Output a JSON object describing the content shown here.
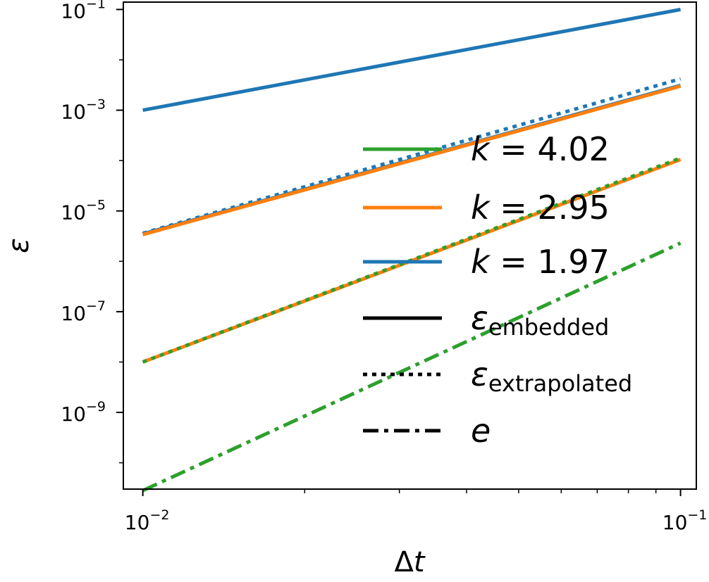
{
  "chart_data": {
    "type": "line",
    "title": "",
    "xlabel": "Δt",
    "ylabel": "ε",
    "xscale": "log",
    "yscale": "log",
    "xlim": [
      0.0092,
      0.107
    ],
    "ylim": [
      3e-11,
      0.14
    ],
    "x_ticks": [
      {
        "value": 0.01,
        "base": "10",
        "exp": "−2"
      },
      {
        "value": 0.1,
        "base": "10",
        "exp": "−1"
      }
    ],
    "y_ticks": [
      {
        "value": 0.1,
        "base": "10",
        "exp": "−1"
      },
      {
        "value": 0.001,
        "base": "10",
        "exp": "−3"
      },
      {
        "value": 1e-05,
        "base": "10",
        "exp": "−5"
      },
      {
        "value": 1e-07,
        "base": "10",
        "exp": "−7"
      },
      {
        "value": 1e-09,
        "base": "10",
        "exp": "−9"
      }
    ],
    "grid": false,
    "legend_position": "center-right",
    "series": [
      {
        "order_label": "k = 1.97",
        "color": "#1f77b4",
        "kind": "embedded",
        "x": [
          0.01,
          0.1
        ],
        "y": [
          0.001,
          0.1
        ]
      },
      {
        "order_label": "k = 1.97",
        "color": "#1f77b4",
        "kind": "embedded",
        "x": [
          0.01,
          0.1
        ],
        "y": [
          3.5e-06,
          0.0031
        ]
      },
      {
        "order_label": "k = 1.97",
        "color": "#1f77b4",
        "kind": "extrapolated",
        "x": [
          0.01,
          0.1
        ],
        "y": [
          3.6e-06,
          0.0042
        ]
      },
      {
        "order_label": "k = 2.95",
        "color": "#ff7f0e",
        "kind": "embedded",
        "x": [
          0.01,
          0.1
        ],
        "y": [
          3.4e-06,
          0.003
        ]
      },
      {
        "order_label": "k = 2.95",
        "color": "#ff7f0e",
        "kind": "embedded",
        "x": [
          0.01,
          0.1
        ],
        "y": [
          1e-08,
          0.000105
        ]
      },
      {
        "order_label": "k = 4.02",
        "color": "#2ca02c",
        "kind": "extrapolated",
        "x": [
          0.01,
          0.1
        ],
        "y": [
          1e-08,
          0.000112
        ]
      },
      {
        "order_label": "k = 4.02",
        "color": "#2ca02c",
        "kind": "e",
        "x": [
          0.01,
          0.1
        ],
        "y": [
          2.8e-11,
          2.3e-06
        ]
      }
    ],
    "legend": [
      {
        "kind": "color",
        "color": "#2ca02c",
        "k": "k",
        "eq": "=",
        "value": "4.02"
      },
      {
        "kind": "color",
        "color": "#ff7f0e",
        "k": "k",
        "eq": "=",
        "value": "2.95"
      },
      {
        "kind": "color",
        "color": "#1f77b4",
        "k": "k",
        "eq": "=",
        "value": "1.97"
      },
      {
        "kind": "style",
        "dash": "solid",
        "symbol": "ε",
        "sub": "embedded"
      },
      {
        "kind": "style",
        "dash": "dotted",
        "symbol": "ε",
        "sub": "extrapolated"
      },
      {
        "kind": "style",
        "dash": "dashdot",
        "symbol": "e",
        "sub": ""
      }
    ]
  }
}
